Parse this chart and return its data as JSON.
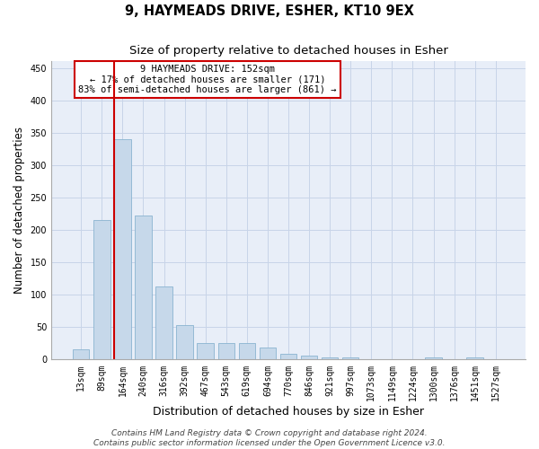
{
  "title": "9, HAYMEADS DRIVE, ESHER, KT10 9EX",
  "subtitle": "Size of property relative to detached houses in Esher",
  "xlabel": "Distribution of detached houses by size in Esher",
  "ylabel": "Number of detached properties",
  "categories": [
    "13sqm",
    "89sqm",
    "164sqm",
    "240sqm",
    "316sqm",
    "392sqm",
    "467sqm",
    "543sqm",
    "619sqm",
    "694sqm",
    "770sqm",
    "846sqm",
    "921sqm",
    "997sqm",
    "1073sqm",
    "1149sqm",
    "1224sqm",
    "1300sqm",
    "1376sqm",
    "1451sqm",
    "1527sqm"
  ],
  "values": [
    16,
    215,
    340,
    222,
    113,
    53,
    26,
    25,
    25,
    18,
    9,
    6,
    4,
    4,
    0,
    0,
    0,
    3,
    0,
    3,
    0
  ],
  "bar_color": "#c6d8ea",
  "bar_edge_color": "#8ab4d0",
  "vline_color": "#cc0000",
  "vline_x_index": 2,
  "annotation_text": "9 HAYMEADS DRIVE: 152sqm\n← 17% of detached houses are smaller (171)\n83% of semi-detached houses are larger (861) →",
  "annotation_box_color": "#ffffff",
  "annotation_box_edge": "#cc0000",
  "ylim": [
    0,
    460
  ],
  "yticks": [
    0,
    50,
    100,
    150,
    200,
    250,
    300,
    350,
    400,
    450
  ],
  "grid_color": "#c8d4e8",
  "bg_color": "#e8eef8",
  "footer_line1": "Contains HM Land Registry data © Crown copyright and database right 2024.",
  "footer_line2": "Contains public sector information licensed under the Open Government Licence v3.0.",
  "title_fontsize": 10.5,
  "subtitle_fontsize": 9.5,
  "xlabel_fontsize": 9,
  "ylabel_fontsize": 8.5,
  "tick_fontsize": 7,
  "annotation_fontsize": 7.5,
  "footer_fontsize": 6.5
}
